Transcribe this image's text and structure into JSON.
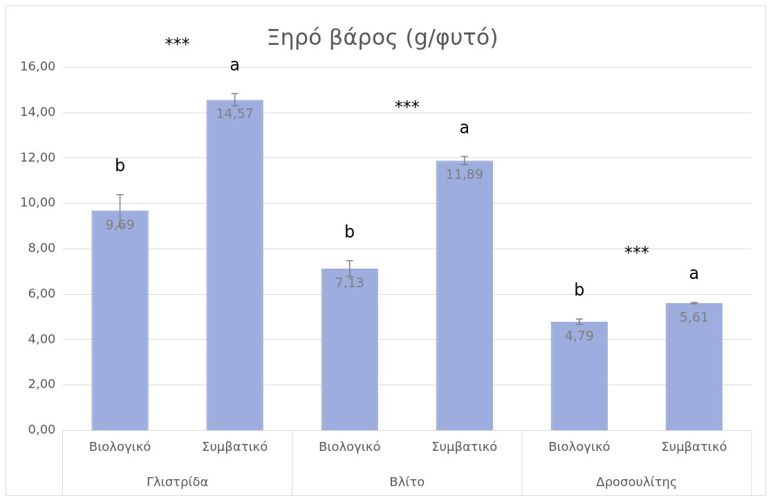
{
  "chart_data": {
    "type": "bar",
    "title": "Ξηρό βάρος (g/φυτό)",
    "categories": [
      "Βιολογικό",
      "Συμβατικό",
      "Βιολογικό",
      "Συμβατικό",
      "Βιολογικό",
      "Συμβατικό"
    ],
    "values": [
      9.69,
      14.57,
      7.13,
      11.89,
      4.79,
      5.61
    ],
    "errors": [
      0.7,
      0.27,
      0.35,
      0.18,
      0.12,
      0.03
    ],
    "value_labels": [
      "9,69",
      "14,57",
      "7,13",
      "11,89",
      "4,79",
      "5,61"
    ],
    "color": "#9cadde",
    "ylim": [
      0,
      16
    ],
    "yticks": [
      {
        "value": 0,
        "label": "0,00"
      },
      {
        "value": 2,
        "label": "2,00"
      },
      {
        "value": 4,
        "label": "4,00"
      },
      {
        "value": 6,
        "label": "6,00"
      },
      {
        "value": 8,
        "label": "8,00"
      },
      {
        "value": 10,
        "label": "10,00"
      },
      {
        "value": 12,
        "label": "12,00"
      },
      {
        "value": 14,
        "label": "14,00"
      },
      {
        "value": 16,
        "label": "16,00"
      }
    ],
    "grid": "y",
    "legend": false,
    "annotations": [
      "b",
      "a",
      "b",
      "a",
      "b",
      "a",
      "***",
      "***",
      "***",
      "Γλιστρίδα",
      "Βλίτο",
      "Δροσουλίτης"
    ]
  }
}
